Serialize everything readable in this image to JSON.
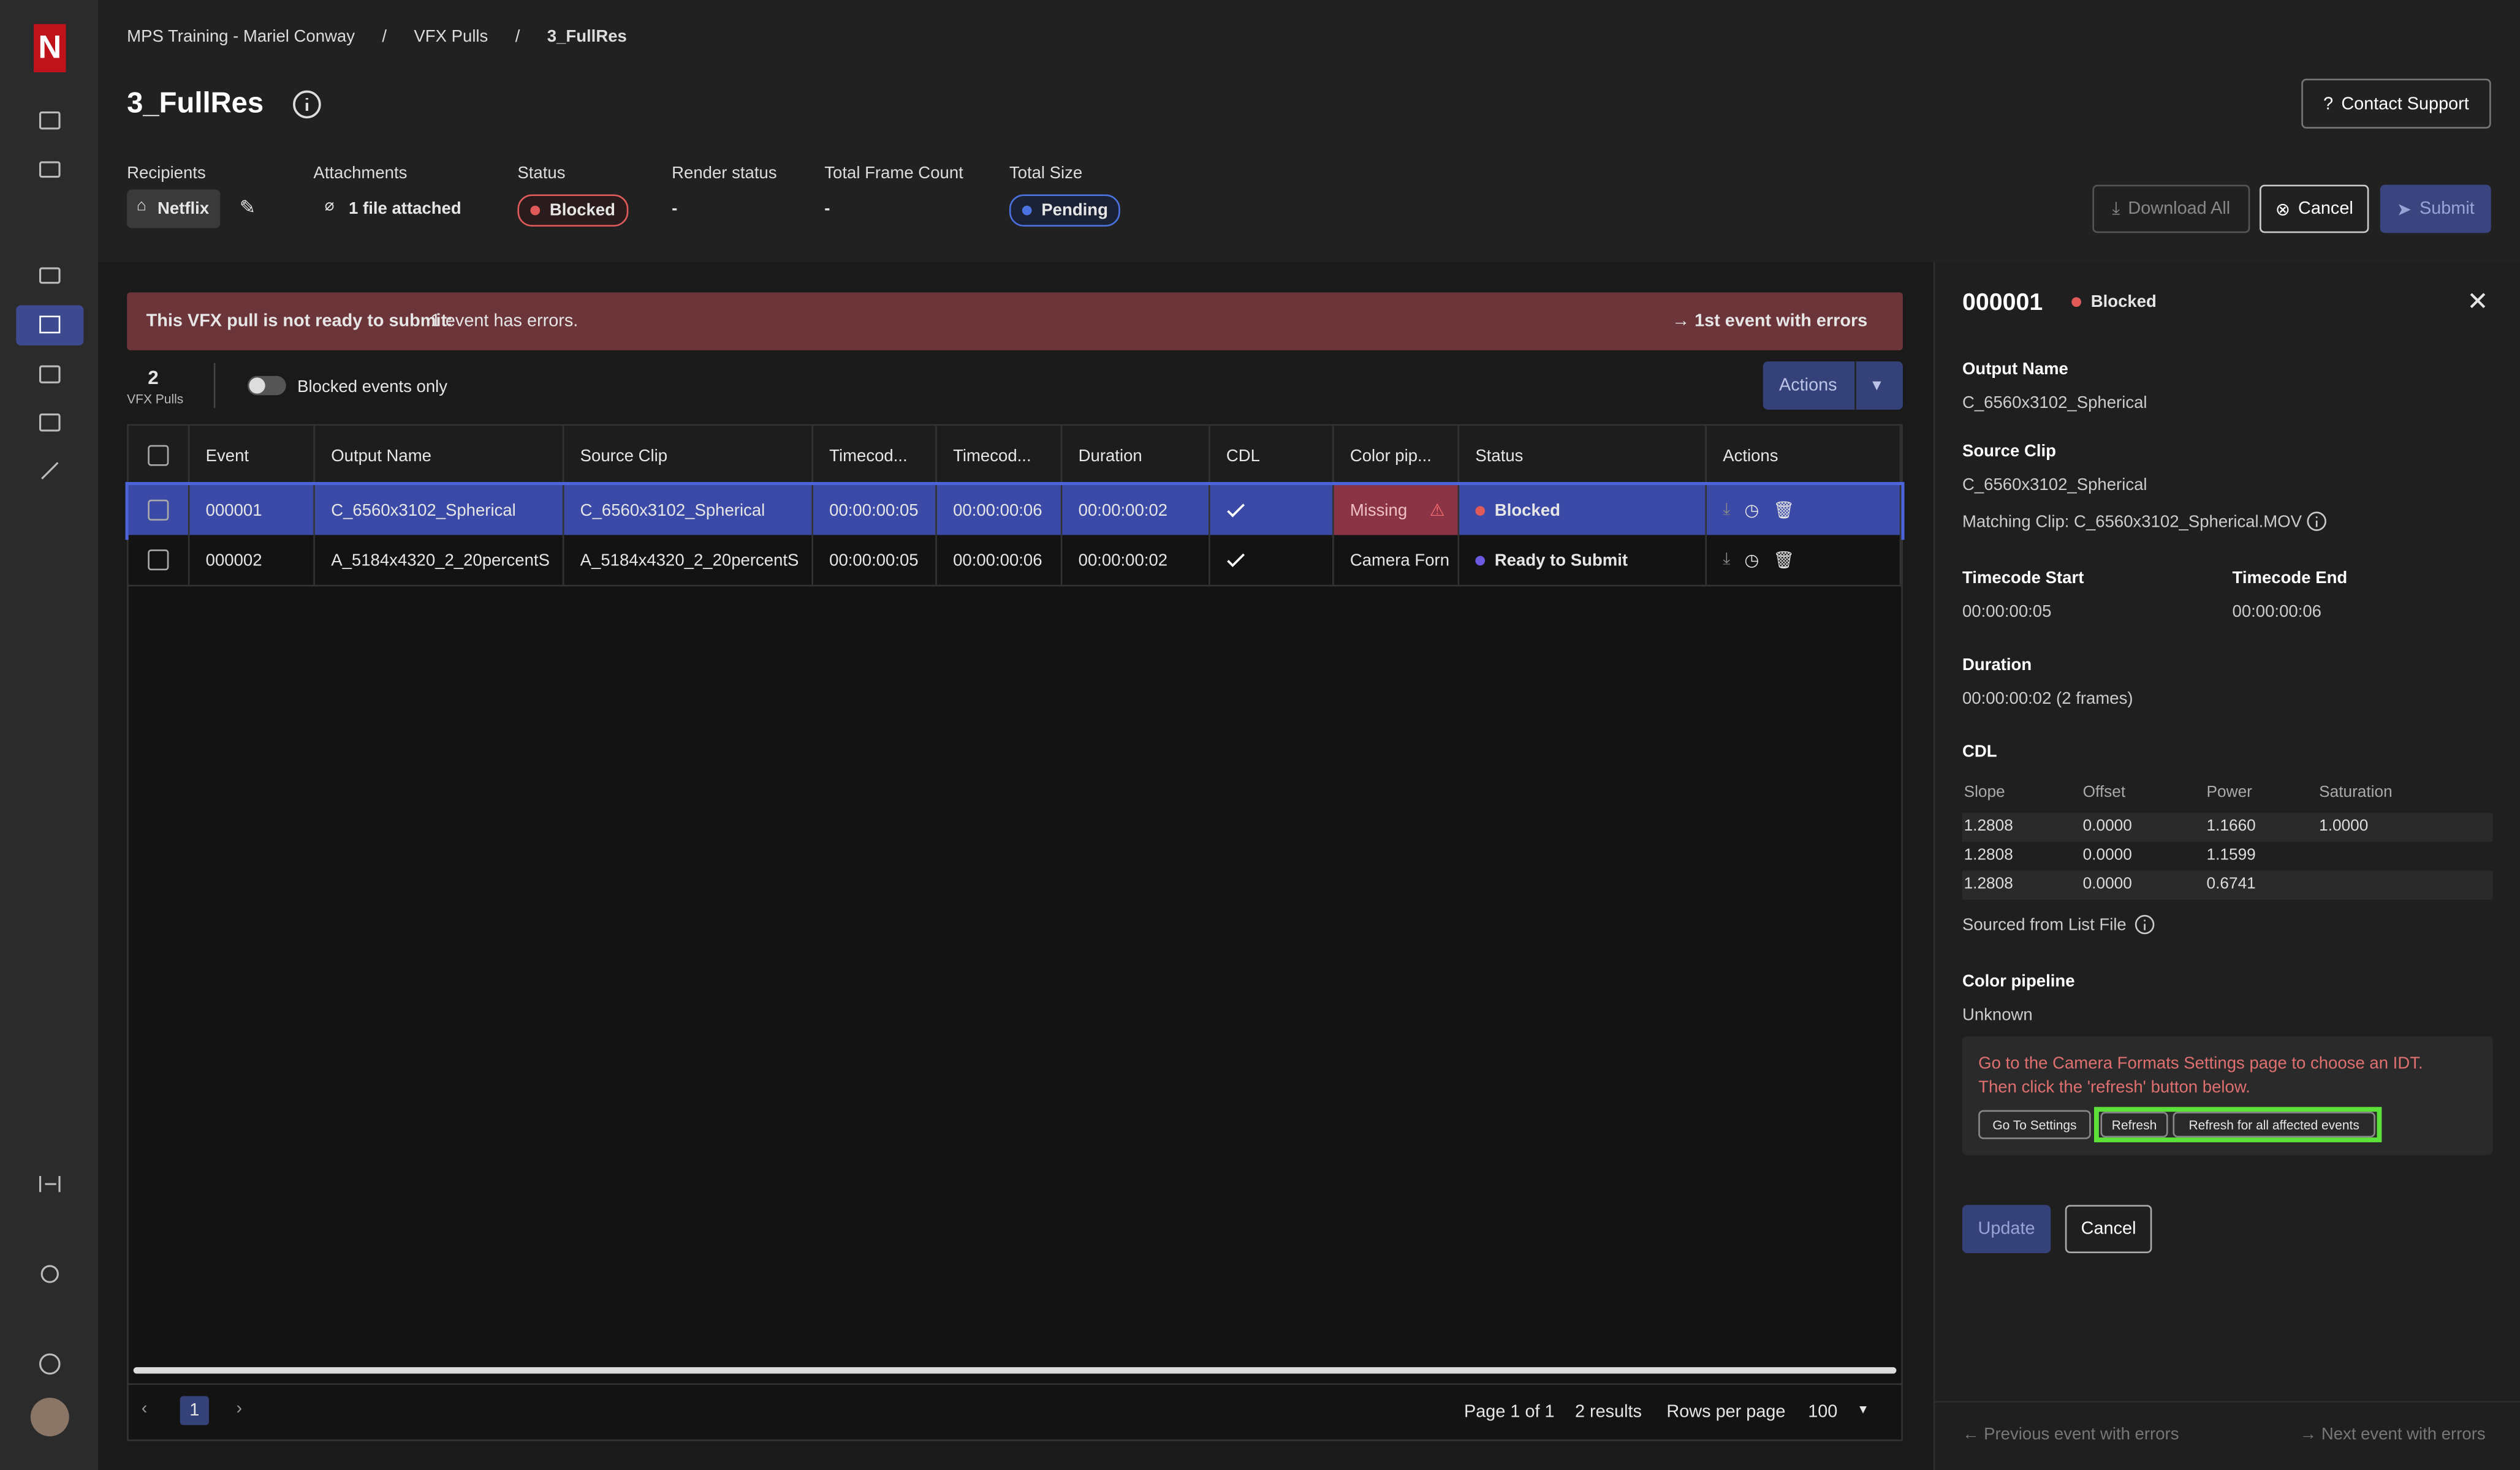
{
  "breadcrumbs": [
    "MPS Training - Mariel Conway",
    "VFX Pulls",
    "3_FullRes"
  ],
  "breadcrumb_separator": "/",
  "header": {
    "title": "3_FullRes",
    "contact_support": "Contact Support"
  },
  "summary": [
    {
      "label": "Recipients",
      "value": "Netflix"
    },
    {
      "label": "Attachments",
      "value": "1 file attached"
    },
    {
      "label": "Status",
      "value": "Blocked"
    },
    {
      "label": "Render status",
      "value": "-"
    },
    {
      "label": "Total Frame Count",
      "value": "-"
    },
    {
      "label": "Total Size",
      "value": "Pending"
    }
  ],
  "buttons": {
    "download_all": "Download All",
    "cancel": "Cancel",
    "submit": "Submit"
  },
  "alert": {
    "bold": "This VFX pull is not ready to submit:",
    "text": "1 event has errors.",
    "link": "1st event with errors"
  },
  "count": {
    "value": 2,
    "label": "VFX Pulls"
  },
  "toggle": "Blocked events only",
  "actions": "Actions",
  "table": {
    "columns": [
      "Event",
      "Output Name",
      "Source Clip",
      "Timecod...",
      "Timecod...",
      "Duration",
      "CDL",
      "Color pip...",
      "Status",
      "Actions"
    ],
    "rows": [
      [
        "000001",
        "C_6560x3102_Spherical",
        "C_6560x3102_Spherical",
        "00:00:00:05",
        "00:00:00:06",
        "00:00:00:02",
        "",
        "Missing",
        "Blocked",
        ""
      ],
      [
        "000002",
        "A_5184x4320_2_20percentS",
        "A_5184x4320_2_20percentS",
        "00:00:00:05",
        "00:00:00:06",
        "00:00:00:02",
        "",
        "Camera Forn",
        "Ready to Submit",
        ""
      ]
    ]
  },
  "pagination": {
    "page": 1,
    "page_info": "Page 1 of 1",
    "results": "2 results",
    "rows_per_page": "Rows per page",
    "rows_value": 100
  },
  "panel": {
    "event": "000001",
    "status": "Blocked",
    "output_name_label": "Output Name",
    "output_name": "C_6560x3102_Spherical",
    "source_clip_label": "Source Clip",
    "source_clip": "C_6560x3102_Spherical",
    "matching_clip": "Matching Clip: C_6560x3102_Spherical.MOV",
    "tc_start_label": "Timecode Start",
    "tc_start": "00:00:00:05",
    "tc_end_label": "Timecode End",
    "tc_end": "00:00:00:06",
    "duration_label": "Duration",
    "duration": "00:00:00:02 (2 frames)",
    "cdl_label": "CDL",
    "cdl_columns": [
      "Slope",
      "Offset",
      "Power",
      "Saturation"
    ],
    "cdl_rows": [
      [
        "1.2808",
        "0.0000",
        "1.1660",
        "1.0000"
      ],
      [
        "1.2808",
        "0.0000",
        "1.1599",
        ""
      ],
      [
        "1.2808",
        "0.0000",
        "0.6741",
        ""
      ]
    ],
    "sourced": "Sourced from List File",
    "color_pipeline_label": "Color pipeline",
    "color_pipeline": "Unknown",
    "error_line1": "Go to the Camera Formats Settings page to choose an IDT.",
    "error_line2": "Then click the 'refresh' button below.",
    "go_to_settings": "Go To Settings",
    "refresh": "Refresh",
    "refresh_all": "Refresh for all affected events",
    "update": "Update",
    "cancel": "Cancel",
    "prev": "Previous event with errors",
    "next": "Next event with errors"
  }
}
